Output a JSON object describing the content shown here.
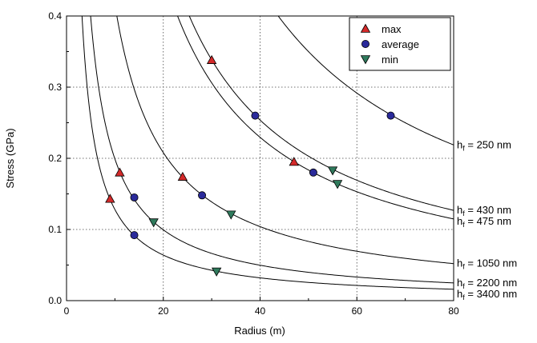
{
  "chart_data": {
    "type": "scatter",
    "xlabel": "Radius (m)",
    "ylabel": "Stress (GPa)",
    "xlim": [
      0,
      80
    ],
    "ylim": [
      0.0,
      0.4
    ],
    "x_ticks": [
      "0",
      "20",
      "40",
      "60",
      "80"
    ],
    "y_ticks": [
      "0.0",
      "0.1",
      "0.2",
      "0.3",
      "0.4"
    ],
    "grid": "dotted",
    "legend": "top-right",
    "series": [
      {
        "name": "max",
        "marker": "triangle-up",
        "color": "#d42a2a",
        "points": [
          [
            9,
            0.143
          ],
          [
            11,
            0.18
          ],
          [
            24,
            0.174
          ],
          [
            30,
            0.338
          ],
          [
            47,
            0.195
          ]
        ]
      },
      {
        "name": "average",
        "marker": "circle",
        "color": "#2a2a9a",
        "points": [
          [
            14,
            0.092
          ],
          [
            14,
            0.145
          ],
          [
            28,
            0.148
          ],
          [
            39,
            0.26
          ],
          [
            51,
            0.18
          ],
          [
            67,
            0.26
          ]
        ]
      },
      {
        "name": "min",
        "marker": "triangle-down",
        "color": "#2f7a5c",
        "points": [
          [
            18,
            0.11
          ],
          [
            31,
            0.041
          ],
          [
            34,
            0.121
          ],
          [
            55,
            0.183
          ],
          [
            56,
            0.164
          ]
        ]
      }
    ],
    "curves": [
      {
        "label": "h",
        "sub": "f",
        "value": "= 250 nm",
        "k": 17.5
      },
      {
        "label": "h",
        "sub": "f",
        "value": "= 430 nm",
        "k": 10.15
      },
      {
        "label": "h",
        "sub": "f",
        "value": "= 475 nm",
        "k": 9.18
      },
      {
        "label": "h",
        "sub": "f",
        "value": "= 1050 nm",
        "k": 4.16
      },
      {
        "label": "h",
        "sub": "f",
        "value": "= 2200 nm",
        "k": 1.99
      },
      {
        "label": "h",
        "sub": "f",
        "value": "= 3400 nm",
        "k": 1.28
      }
    ]
  }
}
